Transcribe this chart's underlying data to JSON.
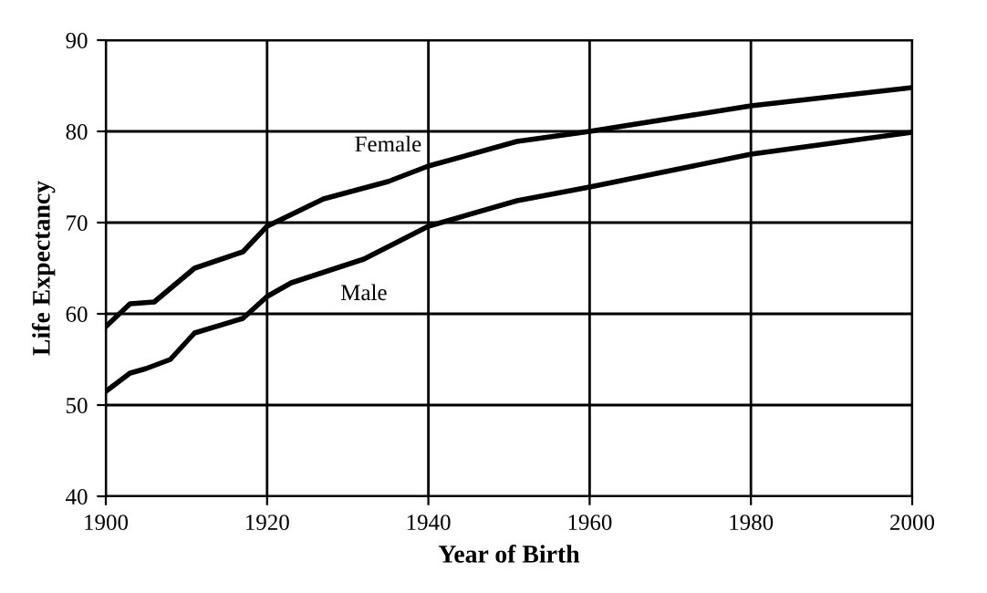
{
  "chart_data": {
    "type": "line",
    "xlabel": "Year of Birth",
    "ylabel": "Life Expectancy",
    "xlim": [
      1900,
      2000
    ],
    "xticks": [
      1900,
      1920,
      1940,
      1960,
      1980,
      2000
    ],
    "ylim": [
      40,
      90
    ],
    "yticks": [
      40,
      50,
      60,
      70,
      80,
      90
    ],
    "grid": true,
    "legend": false,
    "series": [
      {
        "name": "Female",
        "color": "#000000",
        "x": [
          1900,
          1903,
          1906,
          1911,
          1917,
          1920,
          1927,
          1935,
          1940,
          1951,
          1960,
          1980,
          2000
        ],
        "values": [
          58.6,
          61.1,
          61.3,
          65.0,
          66.8,
          69.6,
          72.6,
          74.5,
          76.2,
          78.9,
          80.0,
          82.8,
          84.8
        ]
      },
      {
        "name": "Male",
        "color": "#000000",
        "x": [
          1900,
          1903,
          1905,
          1908,
          1911,
          1917,
          1920,
          1923,
          1932,
          1940,
          1951,
          1960,
          1980,
          2000
        ],
        "values": [
          51.5,
          53.5,
          54.0,
          55.0,
          57.9,
          59.5,
          61.9,
          63.4,
          66.0,
          69.6,
          72.4,
          73.9,
          77.5,
          79.9
        ]
      }
    ]
  }
}
